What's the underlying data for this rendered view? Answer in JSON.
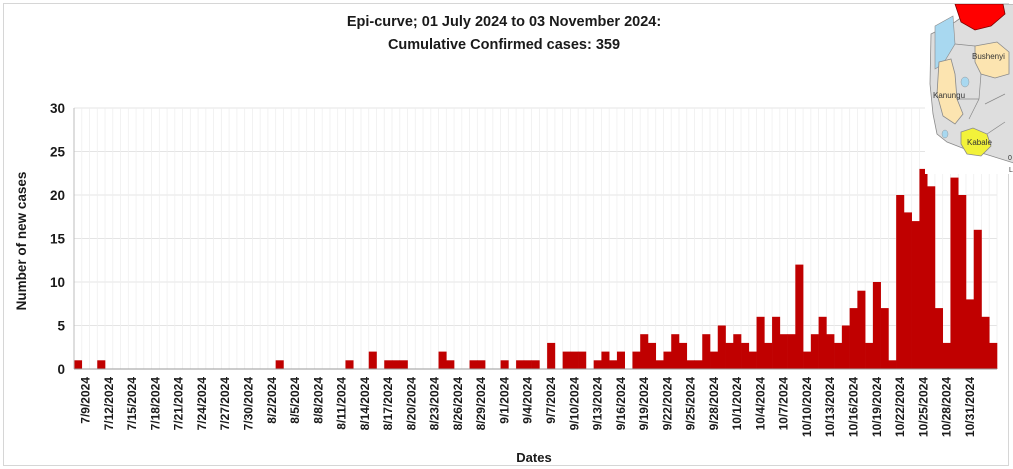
{
  "chart_data": {
    "type": "bar",
    "title": "Epi-curve; 01 July 2024 to 03 November 2024:",
    "subtitle": "Cumulative Confirmed cases: 359",
    "xlabel": "Dates",
    "ylabel": "Number of new cases",
    "ylim": [
      0,
      30
    ],
    "yticks": [
      0,
      5,
      10,
      15,
      20,
      25,
      30
    ],
    "grid": true,
    "bar_color": "#c00000",
    "start_date": "2024-07-08",
    "tick_labels": [
      "7/9/2024",
      "7/12/2024",
      "7/15/2024",
      "7/18/2024",
      "7/21/2024",
      "7/24/2024",
      "7/27/2024",
      "7/30/2024",
      "8/2/2024",
      "8/5/2024",
      "8/8/2024",
      "8/11/2024",
      "8/14/2024",
      "8/17/2024",
      "8/20/2024",
      "8/23/2024",
      "8/26/2024",
      "8/29/2024",
      "9/1/2024",
      "9/4/2024",
      "9/7/2024",
      "9/10/2024",
      "9/13/2024",
      "9/16/2024",
      "9/19/2024",
      "9/22/2024",
      "9/25/2024",
      "9/28/2024",
      "10/1/2024",
      "10/4/2024",
      "10/7/2024",
      "10/10/2024",
      "10/13/2024",
      "10/16/2024",
      "10/19/2024",
      "10/22/2024",
      "10/25/2024",
      "10/28/2024",
      "10/31/2024"
    ],
    "values": [
      1,
      0,
      0,
      1,
      0,
      0,
      0,
      0,
      0,
      0,
      0,
      0,
      0,
      0,
      0,
      0,
      0,
      0,
      0,
      0,
      0,
      0,
      0,
      0,
      0,
      0,
      1,
      0,
      0,
      0,
      0,
      0,
      0,
      0,
      0,
      1,
      0,
      0,
      2,
      0,
      1,
      1,
      1,
      0,
      0,
      0,
      0,
      2,
      1,
      0,
      0,
      1,
      1,
      0,
      0,
      1,
      0,
      1,
      1,
      1,
      0,
      3,
      0,
      2,
      2,
      2,
      0,
      1,
      2,
      1,
      2,
      0,
      2,
      4,
      3,
      1,
      2,
      4,
      3,
      1,
      1,
      4,
      2,
      5,
      3,
      4,
      3,
      2,
      6,
      3,
      6,
      4,
      4,
      12,
      2,
      4,
      6,
      4,
      3,
      5,
      7,
      9,
      3,
      10,
      7,
      1,
      20,
      18,
      17,
      23,
      21,
      7,
      3,
      22,
      20,
      8,
      16,
      6,
      3
    ]
  },
  "map_inset": {
    "labels": [
      "Bushenyi",
      "Kanungu",
      "Kabale"
    ],
    "scale_text": "0",
    "scale_unit": "L",
    "colors": {
      "land": "#dedede",
      "highlight_red": "#ff0000",
      "highlight_tan": "#fce4b0",
      "highlight_yellow": "#f2f23a",
      "water": "#a8d8f0",
      "border": "#8a8a8a"
    }
  }
}
